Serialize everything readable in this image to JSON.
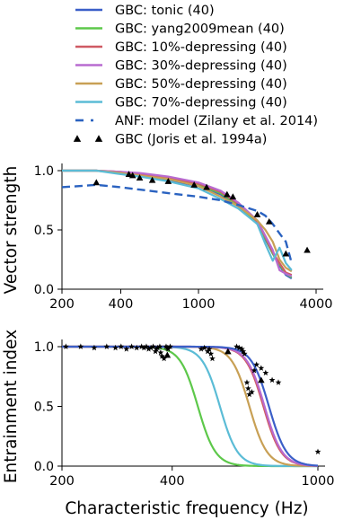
{
  "legend": {
    "entries": [
      {
        "label": "GBC: tonic (40)",
        "color": "#3b5fc8",
        "style": "solid"
      },
      {
        "label": "GBC: yang2009mean (40)",
        "color": "#5dc84a",
        "style": "solid"
      },
      {
        "label": "GBC: 10%-depressing (40)",
        "color": "#cf5a64",
        "style": "solid"
      },
      {
        "label": "GBC: 30%-depressing (40)",
        "color": "#b86bd0",
        "style": "solid"
      },
      {
        "label": "GBC: 50%-depressing (40)",
        "color": "#c8a055",
        "style": "solid"
      },
      {
        "label": "GBC: 70%-depressing (40)",
        "color": "#5bbcd6",
        "style": "solid"
      },
      {
        "label": "ANF: model (Zilany et al. 2014)",
        "color": "#2a62c0",
        "style": "dashed"
      },
      {
        "label": "GBC (Joris et al. 1994a)",
        "color": "#000000",
        "style": "marker"
      }
    ]
  },
  "chart_data": [
    {
      "type": "line",
      "ylabel": "Vector strength",
      "xlabel": "",
      "xscale": "log",
      "xlim": [
        200,
        4000
      ],
      "ylim": [
        0.0,
        1.0
      ],
      "xticks": [
        "200",
        "400",
        "1000",
        "4000"
      ],
      "xtick_values": [
        200,
        400,
        1000,
        4000
      ],
      "yticks": [
        "0.0",
        "0.5",
        "1.0"
      ],
      "ytick_values": [
        0.0,
        0.5,
        1.0
      ],
      "x": [
        200,
        300,
        400,
        500,
        700,
        1000,
        1300,
        1600,
        2000,
        2200,
        2400,
        2600,
        2800,
        3000
      ],
      "series": [
        {
          "name": "GBC: tonic (40)",
          "color": "#3b5fc8",
          "values": [
            1.0,
            1.0,
            0.98,
            0.96,
            0.92,
            0.87,
            0.8,
            0.7,
            0.55,
            0.42,
            0.3,
            0.2,
            0.12,
            0.09
          ]
        },
        {
          "name": "GBC: yang2009mean (40)",
          "color": "#5dc84a",
          "values": [
            1.0,
            1.0,
            0.98,
            0.96,
            0.93,
            0.88,
            0.81,
            0.71,
            0.56,
            0.43,
            0.3,
            0.21,
            0.13,
            0.1
          ]
        },
        {
          "name": "GBC: 10%-depressing (40)",
          "color": "#cf5a64",
          "values": [
            1.0,
            1.0,
            0.99,
            0.97,
            0.94,
            0.89,
            0.82,
            0.72,
            0.57,
            0.44,
            0.31,
            0.22,
            0.14,
            0.12
          ]
        },
        {
          "name": "GBC: 30%-depressing (40)",
          "color": "#b86bd0",
          "values": [
            1.0,
            1.0,
            0.99,
            0.98,
            0.95,
            0.9,
            0.83,
            0.73,
            0.58,
            0.45,
            0.33,
            0.16,
            0.13,
            0.11
          ]
        },
        {
          "name": "GBC: 50%-depressing (40)",
          "color": "#c8a055",
          "values": [
            1.0,
            1.0,
            0.98,
            0.96,
            0.93,
            0.87,
            0.78,
            0.7,
            0.58,
            0.5,
            0.4,
            0.25,
            0.18,
            0.15
          ]
        },
        {
          "name": "GBC: 70%-depressing (40)",
          "color": "#5bbcd6",
          "values": [
            1.0,
            1.0,
            0.97,
            0.95,
            0.91,
            0.85,
            0.76,
            0.68,
            0.55,
            0.38,
            0.24,
            0.35,
            0.22,
            0.16
          ]
        },
        {
          "name": "ANF: model (Zilany et al. 2014)",
          "color": "#2a62c0",
          "dashed": true,
          "values": [
            0.86,
            0.88,
            0.86,
            0.84,
            0.81,
            0.78,
            0.75,
            0.71,
            0.66,
            0.62,
            0.55,
            0.47,
            0.4,
            0.22
          ]
        }
      ],
      "scatter": {
        "name": "GBC (Joris et al. 1994a)",
        "marker": "triangle",
        "points": [
          [
            300,
            0.9
          ],
          [
            440,
            0.97
          ],
          [
            460,
            0.96
          ],
          [
            500,
            0.94
          ],
          [
            580,
            0.92
          ],
          [
            700,
            0.91
          ],
          [
            950,
            0.88
          ],
          [
            1100,
            0.86
          ],
          [
            1400,
            0.8
          ],
          [
            1500,
            0.78
          ],
          [
            2000,
            0.63
          ],
          [
            2300,
            0.57
          ],
          [
            2800,
            0.3
          ],
          [
            3600,
            0.33
          ]
        ]
      }
    },
    {
      "type": "line",
      "ylabel": "Entrainment index",
      "xlabel": "Characteristic frequency (Hz)",
      "xscale": "log",
      "xlim": [
        200,
        1000
      ],
      "ylim": [
        0.0,
        1.0
      ],
      "xticks": [
        "200",
        "400",
        "1000"
      ],
      "xtick_values": [
        200,
        400,
        1000
      ],
      "yticks": [
        "0.0",
        "0.5",
        "1.0"
      ],
      "ytick_values": [
        0.0,
        0.5,
        1.0
      ],
      "series": [
        {
          "name": "GBC: yang2009mean (40)",
          "color": "#5dc84a",
          "midpoint": 470,
          "steepness": 18
        },
        {
          "name": "GBC: 70%-depressing (40)",
          "color": "#5bbcd6",
          "midpoint": 540,
          "steepness": 18
        },
        {
          "name": "GBC: 50%-depressing (40)",
          "color": "#c8a055",
          "midpoint": 650,
          "steepness": 18
        },
        {
          "name": "GBC: 10%-depressing (40)",
          "color": "#cf5a64",
          "midpoint": 710,
          "steepness": 18
        },
        {
          "name": "GBC: 30%-depressing (40)",
          "color": "#b86bd0",
          "midpoint": 715,
          "steepness": 18
        },
        {
          "name": "GBC: tonic (40)",
          "color": "#3b5fc8",
          "midpoint": 735,
          "steepness": 18
        }
      ],
      "scatter": {
        "name": "GBC (Joris et al. 1994a)",
        "marker": "star",
        "points": [
          [
            205,
            1.0
          ],
          [
            225,
            1.0
          ],
          [
            245,
            0.99
          ],
          [
            265,
            1.0
          ],
          [
            280,
            0.99
          ],
          [
            290,
            1.0
          ],
          [
            300,
            0.98
          ],
          [
            310,
            1.0
          ],
          [
            320,
            0.99
          ],
          [
            330,
            1.0
          ],
          [
            335,
            0.99
          ],
          [
            340,
            1.0
          ],
          [
            345,
            0.98
          ],
          [
            350,
            0.99
          ],
          [
            355,
            1.0
          ],
          [
            360,
            0.96
          ],
          [
            362,
            0.98
          ],
          [
            365,
            0.99
          ],
          [
            370,
            1.0
          ],
          [
            372,
            0.95
          ],
          [
            375,
            0.92
          ],
          [
            380,
            0.9
          ],
          [
            385,
            1.0
          ],
          [
            388,
            0.99
          ],
          [
            390,
            0.98
          ],
          [
            395,
            1.0
          ],
          [
            480,
            0.98
          ],
          [
            490,
            0.99
          ],
          [
            500,
            0.96
          ],
          [
            505,
            0.98
          ],
          [
            510,
            0.94
          ],
          [
            515,
            0.9
          ],
          [
            600,
            1.0
          ],
          [
            610,
            0.99
          ],
          [
            620,
            0.98
          ],
          [
            625,
            0.96
          ],
          [
            630,
            0.94
          ],
          [
            640,
            0.7
          ],
          [
            645,
            0.65
          ],
          [
            650,
            0.6
          ],
          [
            660,
            0.62
          ],
          [
            670,
            0.8
          ],
          [
            680,
            0.85
          ],
          [
            700,
            0.82
          ],
          [
            720,
            0.78
          ],
          [
            750,
            0.72
          ],
          [
            780,
            0.7
          ],
          [
            1000,
            0.12
          ]
        ]
      },
      "extra_markers": {
        "marker": "triangle",
        "points": [
          [
            388,
            0.93
          ],
          [
            568,
            0.96
          ],
          [
            700,
            0.72
          ]
        ]
      }
    }
  ]
}
